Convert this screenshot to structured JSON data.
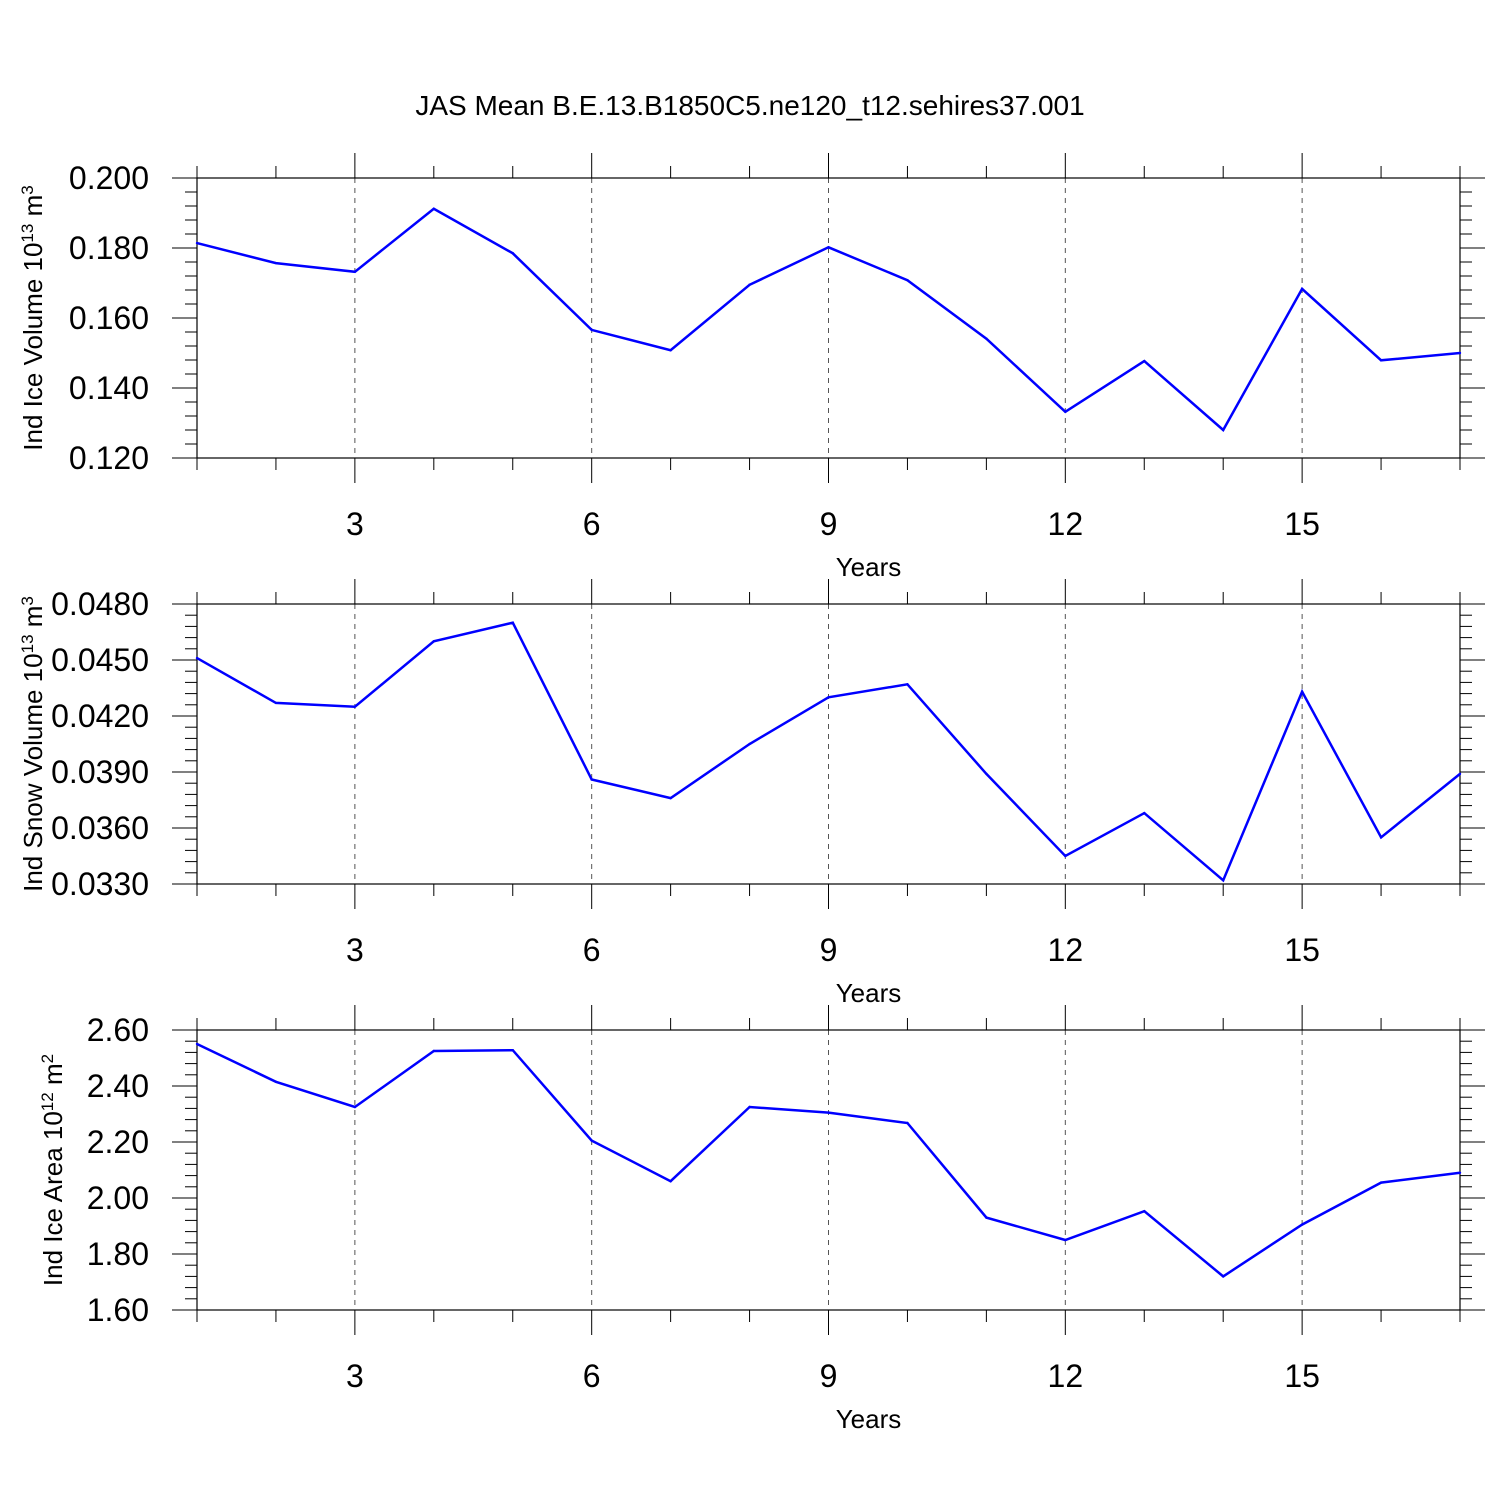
{
  "title": "JAS Mean B.E.13.B1850C5.ne120_t12.sehires37.001",
  "colors": {
    "line": "#0000ff",
    "axis": "#000000",
    "grid": "#555555",
    "background": "#ffffff"
  },
  "chart_data": [
    {
      "type": "line",
      "ylabel_main": "Ind Ice Volume 10",
      "ylabel_exp": "13",
      "ylabel_tail": " m",
      "ylabel_unit_exp": "3",
      "xlabel": "Years",
      "xlim": [
        1,
        17
      ],
      "ylim": [
        0.12,
        0.2
      ],
      "xticks": [
        3,
        6,
        9,
        12,
        15
      ],
      "xtick_labels": [
        "3",
        "6",
        "9",
        "12",
        "15"
      ],
      "yticks": [
        0.12,
        0.14,
        0.16,
        0.18,
        0.2
      ],
      "ytick_labels": [
        "0.120",
        "0.140",
        "0.160",
        "0.180",
        "0.200"
      ],
      "grid": "vertical dashed at major x ticks",
      "x": [
        1,
        2,
        3,
        4,
        5,
        6,
        7,
        8,
        9,
        10,
        11,
        12,
        13,
        14,
        15,
        16,
        17
      ],
      "values": [
        0.1814,
        0.1757,
        0.1732,
        0.1912,
        0.1785,
        0.1566,
        0.1508,
        0.1695,
        0.1802,
        0.1708,
        0.1541,
        0.1332,
        0.1477,
        0.128,
        0.1683,
        0.1479,
        0.15
      ]
    },
    {
      "type": "line",
      "ylabel_main": "Ind Snow Volume 10",
      "ylabel_exp": "13",
      "ylabel_tail": " m",
      "ylabel_unit_exp": "3",
      "xlabel": "Years",
      "xlim": [
        1,
        17
      ],
      "ylim": [
        0.033,
        0.048
      ],
      "xticks": [
        3,
        6,
        9,
        12,
        15
      ],
      "xtick_labels": [
        "3",
        "6",
        "9",
        "12",
        "15"
      ],
      "yticks": [
        0.033,
        0.036,
        0.039,
        0.042,
        0.045,
        0.048
      ],
      "ytick_labels": [
        "0.0330",
        "0.0360",
        "0.0390",
        "0.0420",
        "0.0450",
        "0.0480"
      ],
      "grid": "vertical dashed at major x ticks",
      "x": [
        1,
        2,
        3,
        4,
        5,
        6,
        7,
        8,
        9,
        10,
        11,
        12,
        13,
        14,
        15,
        16,
        17
      ],
      "values": [
        0.0451,
        0.0427,
        0.0425,
        0.046,
        0.047,
        0.0386,
        0.0376,
        0.0405,
        0.043,
        0.0437,
        0.0389,
        0.0345,
        0.0368,
        0.0332,
        0.0433,
        0.0355,
        0.0389
      ]
    },
    {
      "type": "line",
      "ylabel_main": "Ind Ice Area 10",
      "ylabel_exp": "12",
      "ylabel_tail": " m",
      "ylabel_unit_exp": "2",
      "xlabel": "Years",
      "xlim": [
        1,
        17
      ],
      "ylim": [
        1.6,
        2.6
      ],
      "xticks": [
        3,
        6,
        9,
        12,
        15
      ],
      "xtick_labels": [
        "3",
        "6",
        "9",
        "12",
        "15"
      ],
      "yticks": [
        1.6,
        1.8,
        2.0,
        2.2,
        2.4,
        2.6
      ],
      "ytick_labels": [
        "1.60",
        "1.80",
        "2.00",
        "2.20",
        "2.40",
        "2.60"
      ],
      "grid": "vertical dashed at major x ticks",
      "x": [
        1,
        2,
        3,
        4,
        5,
        6,
        7,
        8,
        9,
        10,
        11,
        12,
        13,
        14,
        15,
        16,
        17
      ],
      "values": [
        2.55,
        2.415,
        2.325,
        2.525,
        2.528,
        2.205,
        2.06,
        2.325,
        2.305,
        2.268,
        1.93,
        1.85,
        1.953,
        1.72,
        1.905,
        2.055,
        2.09
      ]
    }
  ]
}
